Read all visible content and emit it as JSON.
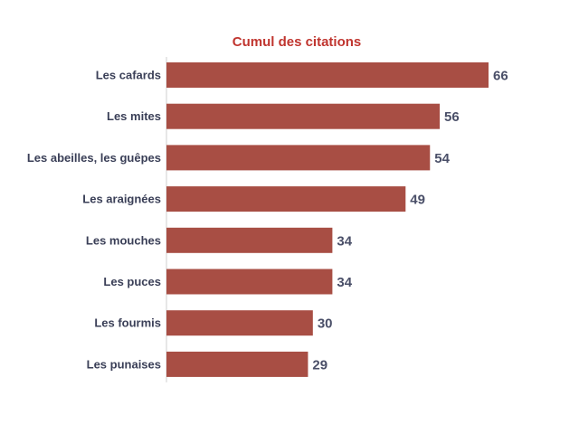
{
  "colors": {
    "bar": "#a84e44",
    "title": "#c0352f",
    "category_label": "#3a3f57",
    "value_label": "#4a4f68",
    "axis_line": "#cfcfcf"
  },
  "chart_data": {
    "type": "bar",
    "orientation": "horizontal",
    "title": "Cumul des citations",
    "xlabel": "",
    "ylabel": "",
    "categories": [
      "Les cafards",
      "Les mites",
      "Les abeilles, les guêpes",
      "Les araignées",
      "Les mouches",
      "Les puces",
      "Les fourmis",
      "Les punaises"
    ],
    "values": [
      66,
      56,
      54,
      49,
      34,
      34,
      30,
      29
    ],
    "xlim": [
      0,
      66
    ],
    "grid": false,
    "legend": "none",
    "data_labels": true
  }
}
